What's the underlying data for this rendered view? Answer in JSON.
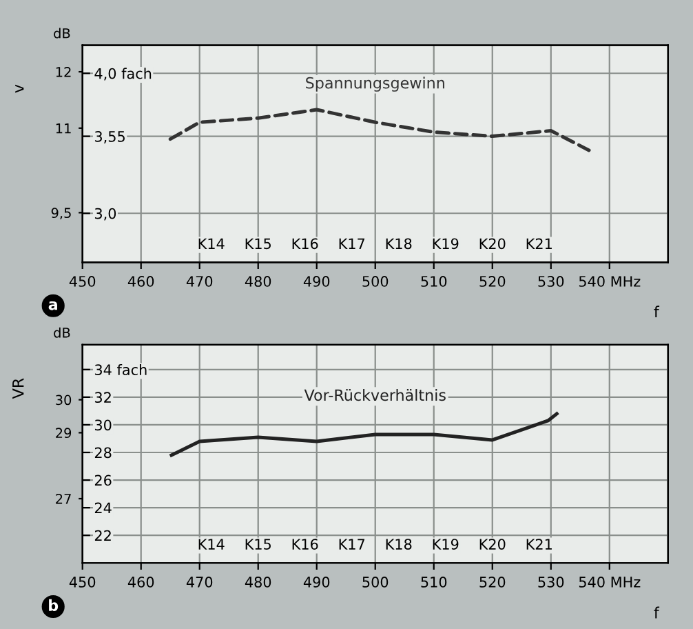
{
  "chart_data": [
    {
      "type": "line",
      "xlabel": "f",
      "ylabel": "v",
      "series": [
        {
          "name": "Spannungsgewinn",
          "color": "#333333",
          "line_style": "dashed",
          "axis": "y2",
          "x": [
            465,
            470,
            480,
            490,
            500,
            510,
            520,
            530,
            536.5
          ],
          "values": [
            3.53,
            3.65,
            3.68,
            3.74,
            3.65,
            3.58,
            3.55,
            3.59,
            3.45
          ]
        }
      ],
      "xlim": [
        450,
        550
      ],
      "xticks": [
        450,
        460,
        470,
        480,
        490,
        500,
        510,
        520,
        530,
        {
          "value": 540,
          "label": "540 MHz"
        }
      ],
      "y2lim": [
        2.65,
        4.2
      ],
      "y2ticks": [
        {
          "value": 3.0,
          "label": "3,0"
        },
        {
          "value": 3.55,
          "label": "3,55"
        },
        {
          "value": 4.0,
          "label": "4,0 fach"
        }
      ],
      "ylim": [
        8.62,
        12.47
      ],
      "yticks": [
        {
          "value": 9.5,
          "label": "9,5"
        },
        11,
        12
      ],
      "grid": true,
      "annotations": [
        "K14",
        "K15",
        "K16",
        "K17",
        "K18",
        "K19",
        "K20",
        "K21",
        "a",
        "dB"
      ]
    },
    {
      "type": "line",
      "xlabel": "f",
      "ylabel": "VR",
      "series": [
        {
          "name": "Vor-Rückverhältnis",
          "color": "#222222",
          "line_style": "solid",
          "axis": "y2",
          "x": [
            465.2,
            470,
            480,
            490,
            500,
            510,
            520,
            529.5,
            531
          ],
          "values": [
            27.8,
            28.8,
            29.1,
            28.8,
            29.3,
            29.3,
            28.9,
            30.3,
            30.8
          ]
        }
      ],
      "xlim": [
        450,
        550
      ],
      "xticks": [
        450,
        460,
        470,
        480,
        490,
        500,
        510,
        520,
        530,
        {
          "value": 540,
          "label": "540 MHz"
        }
      ],
      "y2lim": [
        20,
        35.8
      ],
      "y2ticks": [
        22,
        24,
        26,
        28,
        30,
        32,
        {
          "value": 34,
          "label": "34 fach"
        }
      ],
      "ylim": [
        25.05,
        31.67
      ],
      "yticks": [
        27,
        29,
        30
      ],
      "grid": true,
      "annotations": [
        "K14",
        "K15",
        "K16",
        "K17",
        "K18",
        "K19",
        "K20",
        "K21",
        "b",
        "dB"
      ]
    }
  ]
}
